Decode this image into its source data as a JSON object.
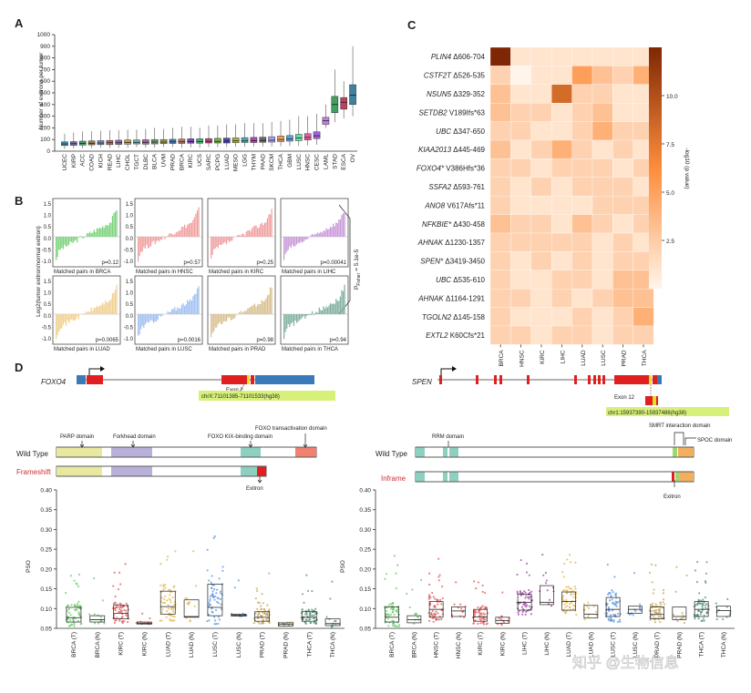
{
  "figure": {
    "panels": [
      "A",
      "B",
      "C",
      "D"
    ],
    "watermark": "知乎 @生物信息"
  },
  "panelA": {
    "ylabel": "Number of exitrons per tumor",
    "yticks": [
      "0",
      "100",
      "200",
      "300",
      "400",
      "500",
      "600",
      "700",
      "800",
      "900",
      "1000"
    ],
    "ylim": [
      0,
      1000
    ],
    "categories": [
      "UCEC",
      "KIRP",
      "ACC",
      "COAD",
      "KICH",
      "READ",
      "LIHC",
      "CHOL",
      "TGCT",
      "DLBC",
      "BLCA",
      "UVM",
      "PRAD",
      "BRCA",
      "KIRC",
      "UCS",
      "SARC",
      "PCPG",
      "LUAD",
      "MESO",
      "LGG",
      "THYM",
      "PAAD",
      "SKCM",
      "THCA",
      "GBM",
      "LUSC",
      "HNSC",
      "CESC",
      "LAML",
      "STAD",
      "ESCA",
      "OV"
    ],
    "medians": [
      62,
      64,
      66,
      68,
      70,
      72,
      72,
      74,
      76,
      76,
      78,
      78,
      80,
      80,
      82,
      82,
      84,
      84,
      86,
      88,
      88,
      90,
      92,
      94,
      100,
      104,
      112,
      118,
      132,
      260,
      400,
      420,
      480
    ],
    "q1": [
      48,
      50,
      52,
      54,
      56,
      56,
      58,
      60,
      62,
      60,
      62,
      64,
      66,
      66,
      68,
      68,
      70,
      70,
      70,
      72,
      74,
      74,
      76,
      78,
      82,
      86,
      90,
      96,
      108,
      230,
      330,
      360,
      400
    ],
    "q3": [
      80,
      82,
      86,
      88,
      90,
      92,
      94,
      96,
      96,
      98,
      100,
      100,
      102,
      104,
      106,
      106,
      108,
      110,
      112,
      114,
      116,
      118,
      120,
      124,
      130,
      134,
      144,
      150,
      166,
      290,
      470,
      460,
      570
    ],
    "wlow": [
      20,
      25,
      25,
      25,
      30,
      28,
      30,
      30,
      35,
      30,
      30,
      35,
      35,
      30,
      32,
      30,
      35,
      35,
      35,
      38,
      38,
      40,
      40,
      40,
      42,
      45,
      45,
      50,
      55,
      200,
      250,
      280,
      300
    ],
    "whigh": [
      150,
      160,
      170,
      170,
      175,
      180,
      180,
      185,
      185,
      190,
      200,
      190,
      200,
      210,
      210,
      200,
      220,
      220,
      230,
      230,
      240,
      240,
      240,
      250,
      260,
      270,
      300,
      300,
      320,
      400,
      700,
      600,
      900
    ],
    "colors": [
      "#3b8fb8",
      "#7a6ab0",
      "#4a9a6a",
      "#9a7a4a",
      "#6a8ac0",
      "#c06a6a",
      "#8a6ab0",
      "#c0a040",
      "#6ab0b0",
      "#a06a9a",
      "#6a9a6a",
      "#9a9a4a",
      "#4a7ab0",
      "#b07a6a",
      "#7a4ab0",
      "#4ab07a",
      "#b04a7a",
      "#7ab04a",
      "#4a4ab0",
      "#b0b04a",
      "#4ab0b0",
      "#b04ab0",
      "#6a6a6a",
      "#a0a0ff",
      "#e0a060",
      "#60a0e0",
      "#60e0a0",
      "#e060a0",
      "#a060e0",
      "#c080e0",
      "#40a060",
      "#c04060",
      "#4080a0"
    ]
  },
  "panelB": {
    "ylabel": "Log2(tumor exitron/normal exitron)",
    "p_overall": "P",
    "p_overall_sub": "Fisher",
    "p_overall_val": "= 5.1e-5",
    "plots": [
      {
        "label": "Matched pairs in BRCA",
        "p": "p=0.12",
        "color": "#7cd37c"
      },
      {
        "label": "Matched pairs in HNSC",
        "p": "p=0.57",
        "color": "#f0a0a0"
      },
      {
        "label": "Matched pairs in KIRC",
        "p": "p=0.25",
        "color": "#f0a0a0"
      },
      {
        "label": "Matched pairs in LIHC",
        "p": "p=0.00041",
        "color": "#c89ad8"
      },
      {
        "label": "Matched pairs in LUAD",
        "p": "p=0.0065",
        "color": "#f0d090"
      },
      {
        "label": "Matched pairs in LUSC",
        "p": "p=0.0016",
        "color": "#a0c0f0"
      },
      {
        "label": "Matched pairs in PRAD",
        "p": "p=0.98",
        "color": "#d8c090"
      },
      {
        "label": "Matched pairs in THCA",
        "p": "p=0.94",
        "color": "#80b0a0"
      }
    ],
    "yticks": [
      "1.5",
      "1.0",
      "0.5",
      "0.0",
      "-0.5",
      "-1.0"
    ]
  },
  "panelC": {
    "colorbar_label": "-log10 (p value)",
    "colorbar_ticks": [
      "10.0",
      "7.5",
      "5.0",
      "2.5"
    ],
    "columns": [
      "BRCA",
      "HNSC",
      "KIRC",
      "LIHC",
      "LUAD",
      "LUSC",
      "PRAD",
      "THCA"
    ],
    "rows": [
      {
        "gene": "PLIN4",
        "mut": " Δ606-704"
      },
      {
        "gene": "CSTF2T",
        "mut": " Δ526-535"
      },
      {
        "gene": "NSUN5",
        "mut": " Δ329-352"
      },
      {
        "gene": "SETDB2",
        "mut": " V189Ifs*63"
      },
      {
        "gene": "UBC",
        "mut": " Δ347-650"
      },
      {
        "gene": "KIAA2013",
        "mut": " Δ445-469"
      },
      {
        "gene": "FOXO4*",
        "mut": " V386Hfs*36"
      },
      {
        "gene": "SSFA2",
        "mut": " Δ593-761"
      },
      {
        "gene": "ANO8",
        "mut": " V617Afs*11"
      },
      {
        "gene": "NFKBIE*",
        "mut": " Δ430-458"
      },
      {
        "gene": "AHNAK",
        "mut": " Δ1230-1357"
      },
      {
        "gene": "SPEN*",
        "mut": " Δ3419-3450"
      },
      {
        "gene": "UBC",
        "mut": " Δ535-610"
      },
      {
        "gene": "AHNAK",
        "mut": " Δ1164-1291"
      },
      {
        "gene": "TGOLN2",
        "mut": " Δ145-158"
      },
      {
        "gene": "EXTL2",
        "mut": " K60Cfs*21"
      }
    ],
    "values": [
      [
        12,
        1,
        1,
        1,
        1,
        1,
        1,
        1
      ],
      [
        2,
        0,
        1,
        1,
        5,
        3,
        2,
        4
      ],
      [
        3,
        1,
        1,
        8,
        2,
        2,
        1,
        1
      ],
      [
        3,
        2,
        2,
        1,
        2,
        3,
        1,
        1
      ],
      [
        2,
        2,
        1,
        1,
        2,
        4,
        2,
        2
      ],
      [
        3,
        1,
        2,
        4,
        2,
        1,
        2,
        1
      ],
      [
        2,
        2,
        1,
        2,
        2,
        2,
        1,
        2
      ],
      [
        2,
        1,
        2,
        1,
        2,
        2,
        2,
        1
      ],
      [
        2,
        1,
        1,
        1,
        1,
        2,
        2,
        2
      ],
      [
        3,
        2,
        2,
        1,
        3,
        2,
        1,
        2
      ],
      [
        2,
        2,
        2,
        2,
        2,
        1,
        2,
        1
      ],
      [
        2,
        1,
        2,
        1,
        2,
        1,
        2,
        2
      ],
      [
        2,
        1,
        1,
        2,
        2,
        1,
        3,
        3
      ],
      [
        2,
        2,
        1,
        2,
        1,
        2,
        3,
        3
      ],
      [
        2,
        1,
        1,
        1,
        2,
        1,
        2,
        4
      ],
      [
        2,
        2,
        1,
        2,
        2,
        1,
        2,
        2
      ]
    ]
  },
  "panelD_left": {
    "gene": "FOXO4",
    "exon_label": "Exon 2",
    "coord": "chrX:71101385-71101533(hg38)",
    "domains": [
      "PARP domain",
      "Forkhead domain",
      "FOXO KIX-binding domain",
      "FOXO transactivation domain"
    ],
    "wild_type": "Wild Type",
    "variant": "Frameshift",
    "exitron": "Exitron",
    "ylabel": "PSO",
    "yticks": [
      "0.40",
      "0.35",
      "0.30",
      "0.25",
      "0.20",
      "0.15",
      "0.10",
      "0.05"
    ],
    "ylim": [
      0.05,
      0.4
    ],
    "groups": [
      "BRCA (T)",
      "BRCA (N)",
      "KIRC (T)",
      "KIRC (N)",
      "LUAD (T)",
      "LUAD (N)",
      "LUSC (T)",
      "LUSC (N)",
      "PRAD (T)",
      "PRAD (N)",
      "THCA (T)",
      "THCA (N)"
    ],
    "medians": [
      0.077,
      0.072,
      0.088,
      0.063,
      0.105,
      0.08,
      0.103,
      0.083,
      0.078,
      0.06,
      0.078,
      0.062
    ],
    "q1": [
      0.066,
      0.066,
      0.074,
      0.061,
      0.086,
      0.078,
      0.082,
      0.081,
      0.068,
      0.056,
      0.068,
      0.057
    ],
    "q3": [
      0.103,
      0.082,
      0.108,
      0.066,
      0.144,
      0.122,
      0.162,
      0.086,
      0.092,
      0.064,
      0.092,
      0.074
    ],
    "colors": [
      "#5cc85c",
      "#5cc85c",
      "#e05050",
      "#e05050",
      "#e0b040",
      "#e0b040",
      "#5090e0",
      "#5090e0",
      "#c0a050",
      "#c0a050",
      "#508a70",
      "#508a70"
    ]
  },
  "panelD_right": {
    "gene": "SPEN",
    "exon_label": "Exon 12",
    "coord": "chr1:15937390-15937486(hg38)",
    "domains": [
      "RRM domain",
      "SMRT interaction domain",
      "SPOC domain"
    ],
    "wild_type": "Wild Type",
    "variant": "Inframe",
    "exitron": "Exitron",
    "ylabel": "PSO",
    "yticks": [
      "0.40",
      "0.35",
      "0.30",
      "0.25",
      "0.20",
      "0.15",
      "0.10",
      "0.05"
    ],
    "ylim": [
      0.05,
      0.4
    ],
    "groups": [
      "BRCA (T)",
      "BRCA (N)",
      "HNSC (T)",
      "HNSC (N)",
      "KIRC (T)",
      "KIRC (N)",
      "LIHC (T)",
      "LIHC (N)",
      "LUAD (T)",
      "LUAD (N)",
      "LUSC (T)",
      "LUSC (N)",
      "PRAD (T)",
      "PRAD (N)",
      "THCA (T)",
      "THCA (N)"
    ],
    "medians": [
      0.078,
      0.072,
      0.098,
      0.094,
      0.079,
      0.07,
      0.116,
      0.116,
      0.118,
      0.086,
      0.098,
      0.098,
      0.085,
      0.08,
      0.098,
      0.095
    ],
    "q1": [
      0.066,
      0.064,
      0.078,
      0.08,
      0.068,
      0.063,
      0.096,
      0.11,
      0.096,
      0.076,
      0.08,
      0.088,
      0.074,
      0.072,
      0.08,
      0.08
    ],
    "q3": [
      0.104,
      0.082,
      0.118,
      0.104,
      0.098,
      0.078,
      0.136,
      0.158,
      0.142,
      0.108,
      0.128,
      0.106,
      0.104,
      0.104,
      0.118,
      0.106
    ],
    "colors": [
      "#5cc85c",
      "#5cc85c",
      "#e05050",
      "#e05050",
      "#e05050",
      "#e05050",
      "#a040a0",
      "#a040a0",
      "#e0b040",
      "#e0b040",
      "#5090e0",
      "#5090e0",
      "#c0a050",
      "#c0a050",
      "#508a70",
      "#508a70"
    ]
  }
}
